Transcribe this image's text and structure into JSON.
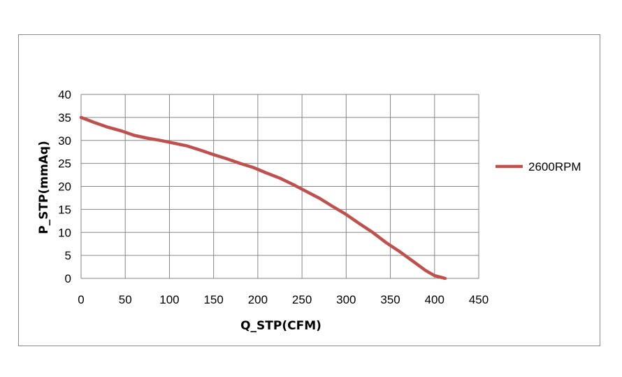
{
  "chart_data": {
    "type": "line",
    "xlabel": "Q_STP(CFM)",
    "ylabel": "P_STP(mmAq)",
    "xlim": [
      0,
      450
    ],
    "ylim": [
      0,
      40
    ],
    "xticks": [
      0,
      50,
      100,
      150,
      200,
      250,
      300,
      350,
      400,
      450
    ],
    "yticks": [
      0,
      5,
      10,
      15,
      20,
      25,
      30,
      35,
      40
    ],
    "grid": true,
    "legend_position": "right",
    "series": [
      {
        "name": "2600RPM",
        "color": "#c0504d",
        "x": [
          0,
          15,
          30,
          45,
          60,
          75,
          90,
          105,
          120,
          135,
          150,
          165,
          180,
          195,
          210,
          225,
          240,
          255,
          270,
          285,
          300,
          315,
          330,
          345,
          360,
          375,
          390,
          400,
          412
        ],
        "y": [
          35,
          33.9,
          32.9,
          32.1,
          31.1,
          30.5,
          30,
          29.4,
          28.8,
          27.9,
          26.9,
          26,
          25,
          24.1,
          22.9,
          21.8,
          20.4,
          18.9,
          17.4,
          15.6,
          13.9,
          11.9,
          10,
          7.8,
          5.9,
          3.8,
          1.7,
          0.6,
          0
        ]
      }
    ]
  }
}
